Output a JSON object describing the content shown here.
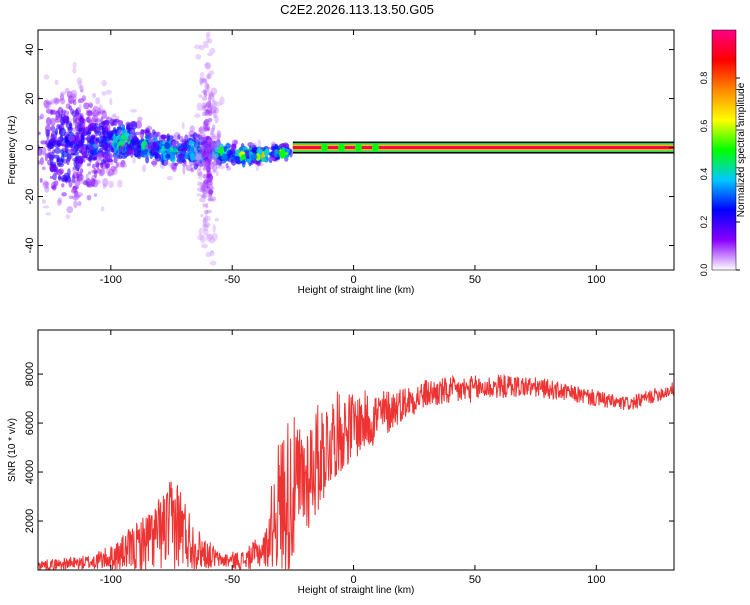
{
  "title": "C2E2.2026.113.13.50.G05",
  "chart_data": [
    {
      "type": "heatmap",
      "xlabel": "Height of straight line (km)",
      "ylabel": "Frequency (Hz)",
      "xlim": [
        -130,
        132
      ],
      "ylim": [
        -50,
        48
      ],
      "xticks": [
        -100,
        -50,
        0,
        50,
        100
      ],
      "yticks": [
        -40,
        -20,
        0,
        20,
        40
      ],
      "carrier_line": {
        "frequency": 0,
        "x_start": -25,
        "x_end": 132
      },
      "clusters": [
        {
          "x": -117,
          "y": 0,
          "sx": 12,
          "sy": 16,
          "amp": 0.25
        },
        {
          "x": -105,
          "y": 2,
          "sx": 8,
          "sy": 9,
          "amp": 0.3
        },
        {
          "x": -95,
          "y": 3,
          "sx": 6,
          "sy": 6,
          "amp": 0.45
        },
        {
          "x": -85,
          "y": 0,
          "sx": 6,
          "sy": 5,
          "amp": 0.4
        },
        {
          "x": -75,
          "y": -1,
          "sx": 6,
          "sy": 5,
          "amp": 0.45
        },
        {
          "x": -65,
          "y": -1,
          "sx": 6,
          "sy": 5,
          "amp": 0.4
        },
        {
          "x": -55,
          "y": -2,
          "sx": 5,
          "sy": 4,
          "amp": 0.45
        },
        {
          "x": -45,
          "y": -3,
          "sx": 4,
          "sy": 3,
          "amp": 0.55
        },
        {
          "x": -38,
          "y": -3,
          "sx": 4,
          "sy": 2,
          "amp": 0.6
        },
        {
          "x": -30,
          "y": -2,
          "sx": 3,
          "sy": 2,
          "amp": 0.55
        },
        {
          "x": -60,
          "y": 0,
          "sx": 3,
          "sy": 30,
          "amp": 0.12
        }
      ],
      "colorbar": {
        "label": "Normalized spectral amplitude",
        "ticks": [
          0.0,
          0.2,
          0.4,
          0.6,
          0.8
        ],
        "tick_labels": [
          "0.0",
          "0.2",
          "0.4",
          "0.6",
          "0.8"
        ],
        "range": [
          0,
          1
        ],
        "stops": [
          "#ffffff",
          "#8800ff",
          "#0000ff",
          "#00c8ff",
          "#00ff00",
          "#ffff00",
          "#ff8800",
          "#ff0000",
          "#ff0088"
        ]
      }
    },
    {
      "type": "line",
      "xlabel": "Height of straight line (km)",
      "ylabel": "SNR (10 * v/v)",
      "xlim": [
        -130,
        132
      ],
      "ylim": [
        0,
        9800
      ],
      "xticks": [
        -100,
        -50,
        0,
        50,
        100
      ],
      "yticks": [
        2000,
        4000,
        6000,
        8000
      ],
      "line_color": "#ee3333",
      "envelope": {
        "x": [
          -130,
          -110,
          -100,
          -90,
          -80,
          -73,
          -65,
          -55,
          -45,
          -36,
          -32,
          -27,
          -22,
          -15,
          -8,
          -2,
          3,
          8,
          13,
          20,
          30,
          40,
          50,
          60,
          70,
          80,
          90,
          100,
          110,
          115,
          120,
          132
        ],
        "base": [
          200,
          300,
          500,
          900,
          1500,
          2000,
          900,
          400,
          400,
          900,
          2500,
          3000,
          3500,
          4500,
          5500,
          5800,
          6000,
          6200,
          6400,
          6800,
          7200,
          7300,
          7400,
          7500,
          7500,
          7400,
          7200,
          7000,
          6800,
          6800,
          7000,
          7400
        ],
        "amp": [
          200,
          300,
          500,
          1000,
          1500,
          2000,
          900,
          300,
          400,
          800,
          2500,
          3500,
          2500,
          2300,
          1800,
          1500,
          1300,
          1200,
          1000,
          700,
          600,
          600,
          550,
          500,
          450,
          400,
          350,
          350,
          300,
          300,
          300,
          300
        ]
      },
      "seed": 7
    }
  ]
}
